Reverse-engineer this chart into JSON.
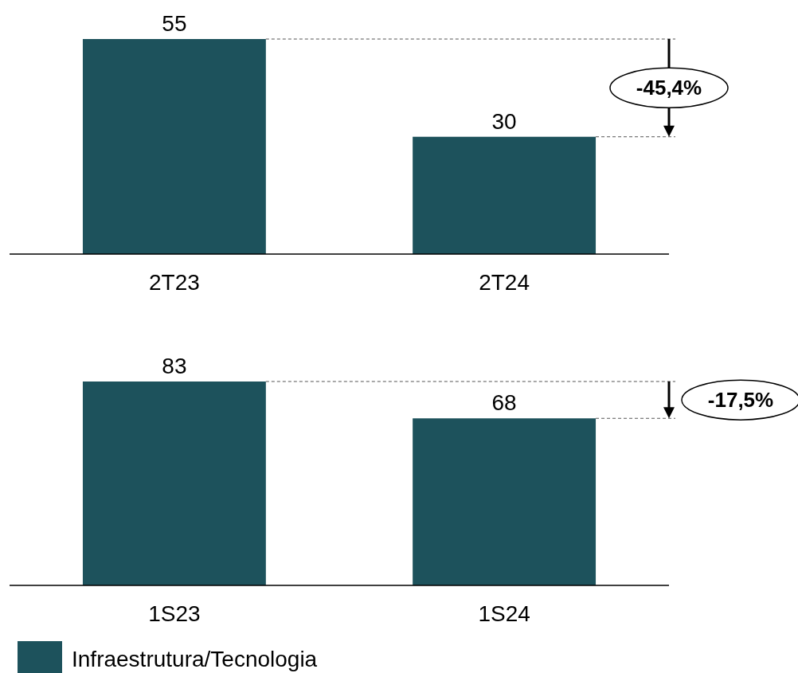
{
  "chart_data": [
    {
      "type": "bar",
      "categories": [
        "2T23",
        "2T24"
      ],
      "values": [
        55,
        30
      ],
      "color": "#1d525c",
      "data_labels": true,
      "annotations": [
        "-45,4%"
      ]
    },
    {
      "type": "bar",
      "categories": [
        "1S23",
        "1S24"
      ],
      "series": [
        {
          "name": "Infraestrutura/Tecnologia",
          "color": "#1d525c",
          "values": [
            83,
            68
          ]
        }
      ],
      "data_labels": true,
      "annotations": [
        "-17,5%"
      ],
      "legend": "bottom left"
    }
  ]
}
